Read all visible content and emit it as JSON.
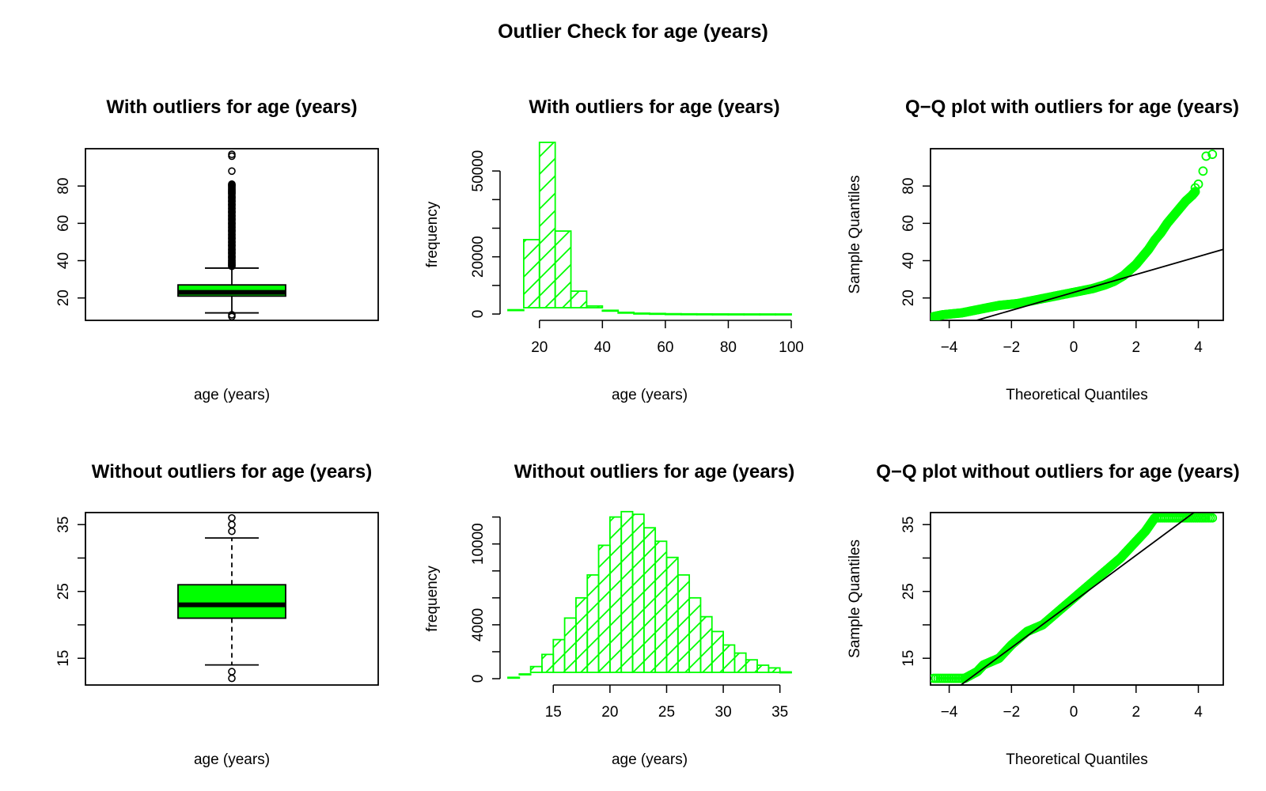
{
  "title": "Outlier Check for  age (years)",
  "accent": "#00ff00",
  "chart_data": [
    {
      "id": "box-with",
      "type": "boxplot",
      "title": "With outliers for age (years)",
      "xlabel": "age (years)",
      "ylabel": "",
      "ylim": [
        8,
        100
      ],
      "yticks": [
        20,
        40,
        60,
        80
      ],
      "min": 12,
      "q1": 21,
      "median": 23,
      "q3": 27,
      "max": 36,
      "outliers": [
        10,
        11,
        37,
        38,
        39,
        40,
        42,
        44,
        46,
        48,
        50,
        52,
        54,
        56,
        58,
        60,
        62,
        64,
        66,
        68,
        70,
        72,
        74,
        76,
        77,
        78,
        79,
        80,
        81,
        88,
        96,
        97
      ]
    },
    {
      "id": "hist-with",
      "type": "histogram",
      "title": "With outliers for age (years)",
      "xlabel": "age (years)",
      "ylabel": "frequency",
      "xlim": [
        10,
        100
      ],
      "ylim": [
        0,
        60000
      ],
      "xticks": [
        20,
        40,
        60,
        80,
        100
      ],
      "yticks": [
        0,
        20000,
        50000
      ],
      "ylabels_minor": [
        10000,
        30000,
        40000
      ],
      "bins": [
        {
          "x0": 10,
          "x1": 15,
          "count": 1500
        },
        {
          "x0": 15,
          "x1": 20,
          "count": 26000
        },
        {
          "x0": 20,
          "x1": 25,
          "count": 60000
        },
        {
          "x0": 25,
          "x1": 30,
          "count": 29000
        },
        {
          "x0": 30,
          "x1": 35,
          "count": 8000
        },
        {
          "x0": 35,
          "x1": 40,
          "count": 2800
        },
        {
          "x0": 40,
          "x1": 45,
          "count": 1300
        },
        {
          "x0": 45,
          "x1": 50,
          "count": 600
        },
        {
          "x0": 50,
          "x1": 55,
          "count": 300
        },
        {
          "x0": 55,
          "x1": 60,
          "count": 200
        },
        {
          "x0": 60,
          "x1": 65,
          "count": 100
        },
        {
          "x0": 65,
          "x1": 70,
          "count": 60
        },
        {
          "x0": 70,
          "x1": 75,
          "count": 40
        },
        {
          "x0": 75,
          "x1": 80,
          "count": 20
        },
        {
          "x0": 80,
          "x1": 85,
          "count": 10
        },
        {
          "x0": 85,
          "x1": 90,
          "count": 5
        },
        {
          "x0": 90,
          "x1": 95,
          "count": 3
        },
        {
          "x0": 95,
          "x1": 100,
          "count": 2
        }
      ]
    },
    {
      "id": "qq-with",
      "type": "scatter",
      "title": "Q−Q plot with outliers for age (years)",
      "xlabel": "Theoretical Quantiles",
      "ylabel": "Sample Quantiles",
      "xlim": [
        -4.6,
        4.8
      ],
      "ylim": [
        8,
        100
      ],
      "xticks": [
        -4,
        -2,
        0,
        2,
        4
      ],
      "xticklabels": [
        "−4",
        "−2",
        "0",
        "2",
        "4"
      ],
      "yticks": [
        20,
        40,
        60,
        80
      ],
      "curve": [
        [
          -4.5,
          10
        ],
        [
          -4.2,
          11
        ],
        [
          -3.6,
          12
        ],
        [
          -3.0,
          14
        ],
        [
          -2.4,
          16
        ],
        [
          -1.8,
          17
        ],
        [
          -1.2,
          19
        ],
        [
          -0.6,
          21
        ],
        [
          0,
          23
        ],
        [
          0.6,
          25
        ],
        [
          1.0,
          27
        ],
        [
          1.3,
          29
        ],
        [
          1.6,
          32
        ],
        [
          1.8,
          35
        ],
        [
          2.0,
          38
        ],
        [
          2.2,
          42
        ],
        [
          2.4,
          46
        ],
        [
          2.6,
          51
        ],
        [
          2.8,
          55
        ],
        [
          3.0,
          60
        ],
        [
          3.2,
          64
        ],
        [
          3.4,
          68
        ],
        [
          3.6,
          72
        ],
        [
          3.8,
          75
        ],
        [
          3.9,
          77
        ]
      ],
      "extra_points": [
        [
          3.9,
          79
        ],
        [
          4.0,
          81
        ],
        [
          4.15,
          88
        ],
        [
          4.25,
          96
        ],
        [
          4.45,
          97
        ]
      ],
      "line": {
        "slope": 4.8,
        "intercept": 23
      }
    },
    {
      "id": "box-without",
      "type": "boxplot",
      "title": "Without outliers for age (years)",
      "xlabel": "age (years)",
      "ylabel": "",
      "ylim": [
        11,
        36.8
      ],
      "yticks": [
        15,
        25,
        35
      ],
      "ylabels_minor": [
        20,
        30
      ],
      "min": 14,
      "q1": 21,
      "median": 23,
      "q3": 26,
      "max": 33,
      "outliers": [
        12,
        13,
        34,
        35,
        36
      ]
    },
    {
      "id": "hist-without",
      "type": "histogram",
      "title": "Without outliers for age (years)",
      "xlabel": "age (years)",
      "ylabel": "frequency",
      "xlim": [
        11,
        36
      ],
      "ylim": [
        0,
        12800
      ],
      "xticks": [
        15,
        20,
        25,
        30,
        35
      ],
      "yticks": [
        0,
        4000,
        10000
      ],
      "ylabels_minor": [
        2000,
        6000,
        8000,
        12000
      ],
      "bins": [
        {
          "x0": 11,
          "x1": 12,
          "count": 100
        },
        {
          "x0": 12,
          "x1": 13,
          "count": 350
        },
        {
          "x0": 13,
          "x1": 14,
          "count": 900
        },
        {
          "x0": 14,
          "x1": 15,
          "count": 1800
        },
        {
          "x0": 15,
          "x1": 16,
          "count": 2900
        },
        {
          "x0": 16,
          "x1": 17,
          "count": 4500
        },
        {
          "x0": 17,
          "x1": 18,
          "count": 6000
        },
        {
          "x0": 18,
          "x1": 19,
          "count": 7700
        },
        {
          "x0": 19,
          "x1": 20,
          "count": 9900
        },
        {
          "x0": 20,
          "x1": 21,
          "count": 12000
        },
        {
          "x0": 21,
          "x1": 22,
          "count": 12400
        },
        {
          "x0": 22,
          "x1": 23,
          "count": 12200
        },
        {
          "x0": 23,
          "x1": 24,
          "count": 11200
        },
        {
          "x0": 24,
          "x1": 25,
          "count": 10200
        },
        {
          "x0": 25,
          "x1": 26,
          "count": 9000
        },
        {
          "x0": 26,
          "x1": 27,
          "count": 7700
        },
        {
          "x0": 27,
          "x1": 28,
          "count": 6000
        },
        {
          "x0": 28,
          "x1": 29,
          "count": 4600
        },
        {
          "x0": 29,
          "x1": 30,
          "count": 3500
        },
        {
          "x0": 30,
          "x1": 31,
          "count": 2500
        },
        {
          "x0": 31,
          "x1": 32,
          "count": 1900
        },
        {
          "x0": 32,
          "x1": 33,
          "count": 1400
        },
        {
          "x0": 33,
          "x1": 34,
          "count": 1000
        },
        {
          "x0": 34,
          "x1": 35,
          "count": 800
        },
        {
          "x0": 35,
          "x1": 36,
          "count": 500
        }
      ]
    },
    {
      "id": "qq-without",
      "type": "scatter",
      "title": "Q−Q plot without outliers for age (years)",
      "xlabel": "Theoretical Quantiles",
      "ylabel": "Sample Quantiles",
      "xlim": [
        -4.6,
        4.8
      ],
      "ylim": [
        11,
        36.8
      ],
      "xticks": [
        -4,
        -2,
        0,
        2,
        4
      ],
      "xticklabels": [
        "−4",
        "−2",
        "0",
        "2",
        "4"
      ],
      "yticks": [
        15,
        25,
        35
      ],
      "ylabels_minor": [
        20,
        30
      ],
      "curve": [
        [
          -4.5,
          12
        ],
        [
          -3.5,
          12
        ],
        [
          -3.1,
          13
        ],
        [
          -2.9,
          14
        ],
        [
          -2.4,
          15
        ],
        [
          -2.0,
          17
        ],
        [
          -1.5,
          19
        ],
        [
          -1.0,
          20
        ],
        [
          -0.5,
          22
        ],
        [
          0,
          24
        ],
        [
          0.5,
          26
        ],
        [
          1.0,
          28
        ],
        [
          1.5,
          30
        ],
        [
          1.9,
          32
        ],
        [
          2.3,
          34
        ],
        [
          2.6,
          36
        ],
        [
          3.5,
          36
        ],
        [
          4.45,
          36
        ]
      ],
      "extra_points": [],
      "line": {
        "slope": 3.45,
        "intercept": 23.5
      }
    }
  ]
}
